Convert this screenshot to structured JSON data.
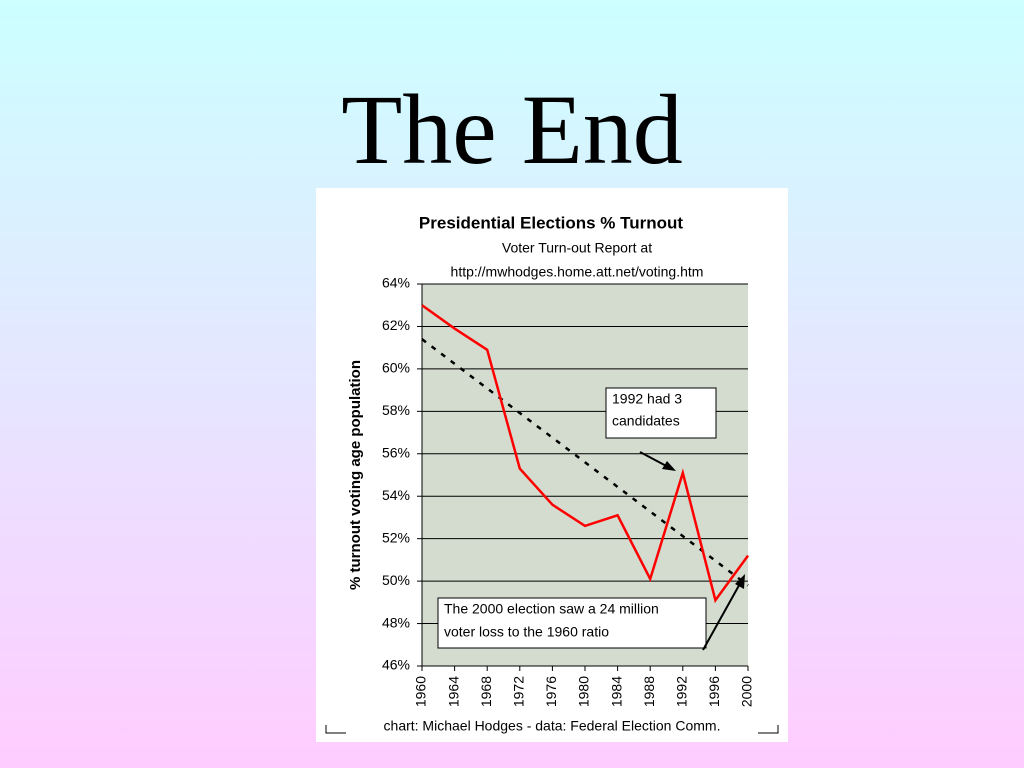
{
  "slide": {
    "title": "The End"
  },
  "chart_data": {
    "type": "line",
    "title": "Presidential Elections % Turnout",
    "subtitle": [
      "Voter Turn-out Report at",
      "http://mwhodges.home.att.net/voting.htm"
    ],
    "y_label": "% turnout voting age population",
    "footer": "chart: Michael Hodges -  data: Federal Election Comm.",
    "x": [
      1960,
      1964,
      1968,
      1972,
      1976,
      1980,
      1984,
      1988,
      1992,
      1996,
      2000
    ],
    "series": [
      {
        "color": "#ff0000",
        "values": [
          63.0,
          61.9,
          60.9,
          55.3,
          53.6,
          52.6,
          53.1,
          50.1,
          55.1,
          49.1,
          51.2
        ]
      }
    ],
    "trend": {
      "x": [
        1960,
        2000
      ],
      "values": [
        61.4,
        49.8
      ],
      "color": "#000000"
    },
    "xlim": [
      1960,
      2000
    ],
    "xticks": [
      1960,
      1964,
      1968,
      1972,
      1976,
      1980,
      1984,
      1988,
      1992,
      1996,
      2000
    ],
    "ylim": [
      46,
      64
    ],
    "yticks": [
      {
        "value": 46,
        "label": "46%"
      },
      {
        "value": 48,
        "label": "48%"
      },
      {
        "value": 50,
        "label": "50%"
      },
      {
        "value": 52,
        "label": "52%"
      },
      {
        "value": 54,
        "label": "54%"
      },
      {
        "value": 56,
        "label": "56%"
      },
      {
        "value": 58,
        "label": "58%"
      },
      {
        "value": 60,
        "label": "60%"
      },
      {
        "value": 62,
        "label": "62%"
      },
      {
        "value": 64,
        "label": "64%"
      }
    ],
    "grid": true,
    "annotations": [
      {
        "lines": [
          "1992 had 3",
          "candidates"
        ]
      },
      {
        "lines": [
          "The 2000 election saw a 24 million",
          "voter loss to the 1960 ratio"
        ]
      }
    ]
  }
}
